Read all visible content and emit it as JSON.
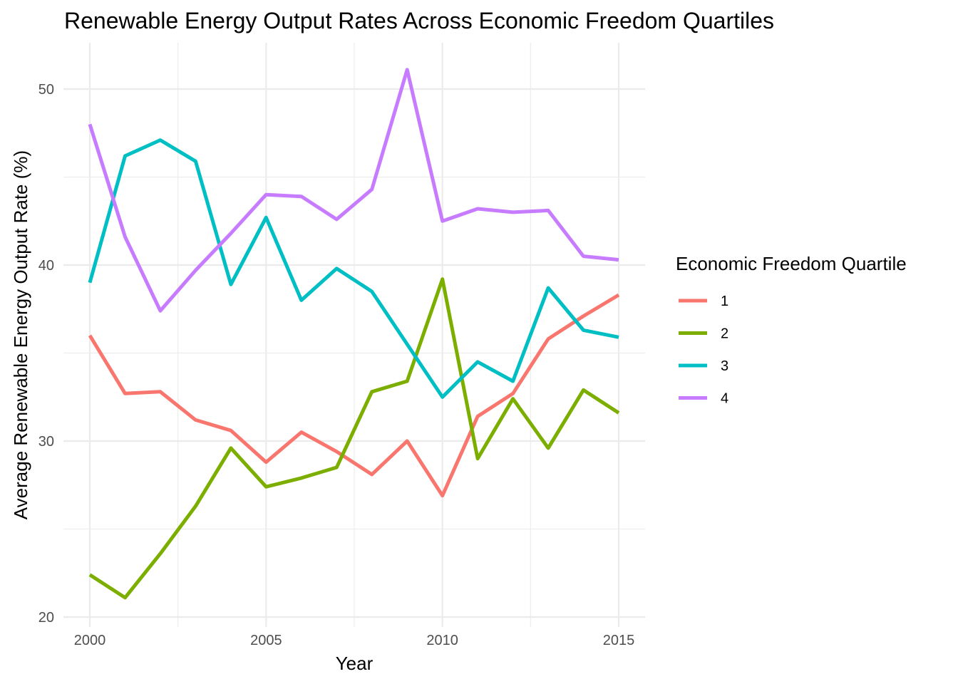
{
  "chart_data": {
    "type": "line",
    "title": "Renewable Energy Output Rates Across Economic Freedom Quartiles",
    "xlabel": "Year",
    "ylabel": "Average Renewable Energy Output Rate (%)",
    "x": [
      2000,
      2001,
      2002,
      2003,
      2004,
      2005,
      2006,
      2007,
      2008,
      2009,
      2010,
      2011,
      2012,
      2013,
      2014,
      2015
    ],
    "xlim": [
      1999.25,
      2015.75
    ],
    "ylim": [
      20,
      52.5
    ],
    "x_ticks": [
      2000,
      2005,
      2010,
      2015
    ],
    "y_ticks": [
      20,
      30,
      40,
      50
    ],
    "x_tick_labels": [
      "2000",
      "2005",
      "2010",
      "2015"
    ],
    "y_tick_labels": [
      "20",
      "30",
      "40",
      "50"
    ],
    "grid": true,
    "legend": {
      "title": "Economic Freedom Quartile",
      "position": "right"
    },
    "series": [
      {
        "name": "1",
        "color": "#F8766D",
        "values": [
          36.0,
          32.7,
          32.8,
          31.2,
          30.6,
          28.8,
          30.5,
          29.4,
          28.1,
          30.0,
          26.9,
          31.4,
          32.7,
          35.8,
          37.1,
          38.3
        ]
      },
      {
        "name": "2",
        "color": "#7CAE00",
        "values": [
          22.4,
          21.1,
          23.6,
          26.3,
          29.6,
          27.4,
          27.9,
          28.5,
          32.8,
          33.4,
          39.2,
          29.0,
          32.4,
          29.6,
          32.9,
          31.6
        ]
      },
      {
        "name": "3",
        "color": "#00BFC4",
        "values": [
          39.0,
          46.2,
          47.1,
          45.9,
          38.9,
          42.7,
          38.0,
          39.8,
          38.5,
          35.5,
          32.5,
          34.5,
          33.4,
          38.7,
          36.3,
          35.9
        ]
      },
      {
        "name": "4",
        "color": "#C77CFF",
        "values": [
          48.0,
          41.6,
          37.4,
          39.7,
          41.8,
          44.0,
          43.9,
          42.6,
          44.3,
          51.1,
          42.5,
          43.2,
          43.0,
          43.1,
          40.5,
          40.3
        ]
      }
    ]
  }
}
